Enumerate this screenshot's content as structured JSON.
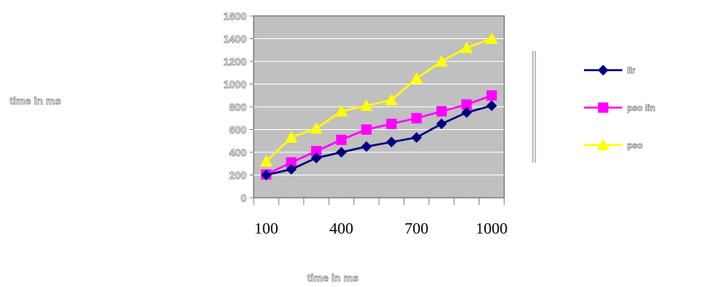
{
  "chart_data": {
    "type": "line",
    "ylabel": "time in ms",
    "xlabel": "time in ms",
    "ylim": [
      0,
      1600
    ],
    "y_ticks": [
      "0",
      "200",
      "400",
      "600",
      "800",
      "1000",
      "1200",
      "1400",
      "1600"
    ],
    "x_tick_labels": [
      "100",
      "400",
      "700",
      "1000"
    ],
    "x": [
      100,
      200,
      300,
      400,
      500,
      600,
      700,
      800,
      900,
      1000
    ],
    "grid": true,
    "plot_background": "#c0c0c0",
    "legend_position": "right",
    "series": [
      {
        "name": "lir",
        "color": "#000080",
        "marker": "diamond",
        "values": [
          200,
          250,
          350,
          400,
          450,
          490,
          530,
          650,
          750,
          810
        ]
      },
      {
        "name": "pso lin",
        "color": "#ff00ff",
        "marker": "square",
        "values": [
          205,
          310,
          410,
          510,
          600,
          650,
          700,
          760,
          820,
          900
        ]
      },
      {
        "name": "pso",
        "color": "#ffff00",
        "marker": "triangle",
        "values": [
          320,
          530,
          610,
          760,
          810,
          860,
          1050,
          1200,
          1320,
          1400
        ]
      }
    ]
  }
}
